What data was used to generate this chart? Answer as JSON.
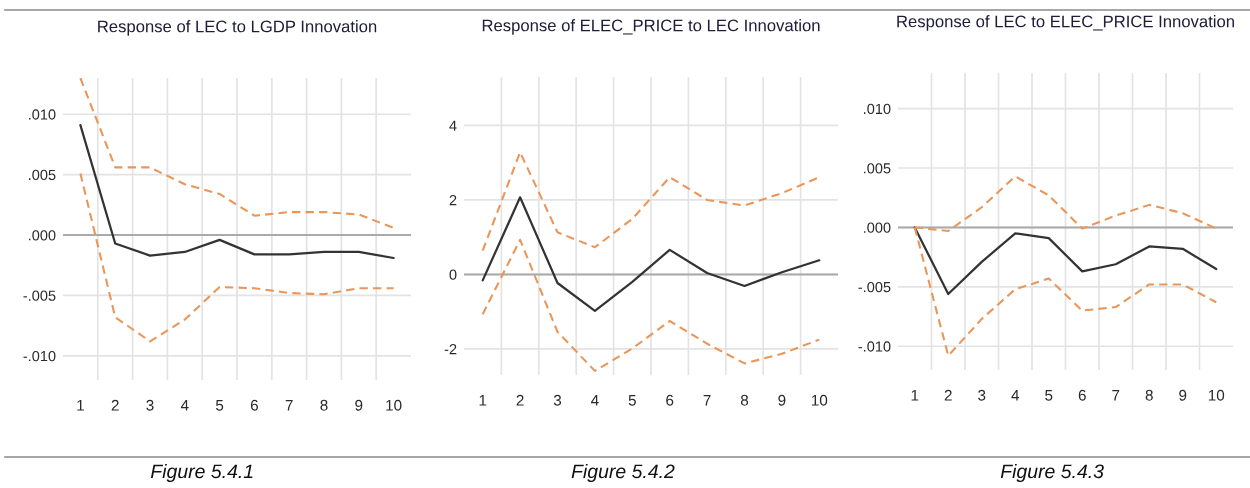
{
  "chart_data": [
    {
      "type": "line",
      "title": "Response of LEC to LGDP Innovation",
      "categories": [
        "1",
        "2",
        "3",
        "4",
        "5",
        "6",
        "7",
        "8",
        "9",
        "10"
      ],
      "series": [
        {
          "color": "#333333",
          "line_style": "solid",
          "values": [
            0.0091,
            -0.0007,
            -0.0017,
            -0.0014,
            -0.0004,
            -0.0016,
            -0.0016,
            -0.0014,
            -0.0014,
            -0.0019
          ]
        },
        {
          "color": "#e9965a",
          "line_style": "dashed",
          "values": [
            0.013,
            0.0056,
            0.0056,
            0.0042,
            0.0034,
            0.0016,
            0.0019,
            0.0019,
            0.0017,
            0.0006
          ]
        },
        {
          "color": "#e9965a",
          "line_style": "dashed",
          "values": [
            0.0051,
            -0.0068,
            -0.0088,
            -0.007,
            -0.0043,
            -0.0044,
            -0.0048,
            -0.0049,
            -0.0044,
            -0.0044
          ]
        }
      ],
      "ylim": [
        -0.012,
        0.013
      ],
      "yticks": [
        {
          "value": 0.01,
          "label": ".010"
        },
        {
          "value": 0.005,
          "label": ".005"
        },
        {
          "value": 0,
          "label": ".000"
        },
        {
          "value": -0.005,
          "label": "-.005"
        },
        {
          "value": -0.01,
          "label": "-.010"
        }
      ],
      "grid": true,
      "ref_lines": [
        {
          "axis": "y",
          "value": 0,
          "color": "#aaaaaa"
        }
      ],
      "annotations": [
        "Figure 5.4.1"
      ]
    },
    {
      "type": "line",
      "title": "Response of ELEC_PRICE to LEC Innovation",
      "categories": [
        "1",
        "2",
        "3",
        "4",
        "5",
        "6",
        "7",
        "8",
        "9",
        "10"
      ],
      "series": [
        {
          "color": "#333333",
          "line_style": "solid",
          "values": [
            -0.16,
            2.07,
            -0.23,
            -0.98,
            -0.2,
            0.66,
            0.04,
            -0.31,
            0.06,
            0.38
          ]
        },
        {
          "color": "#e9965a",
          "line_style": "dashed",
          "values": [
            0.64,
            3.28,
            1.13,
            0.73,
            1.49,
            2.61,
            2.0,
            1.85,
            2.18,
            2.61
          ]
        },
        {
          "color": "#e9965a",
          "line_style": "dashed",
          "values": [
            -1.07,
            0.93,
            -1.54,
            -2.59,
            -1.99,
            -1.25,
            -1.86,
            -2.39,
            -2.13,
            -1.75
          ]
        }
      ],
      "ylim": [
        -2.7,
        5.3
      ],
      "yticks": [
        4,
        2,
        0,
        -2
      ],
      "grid": true,
      "ref_lines": [
        {
          "axis": "y",
          "value": 0,
          "color": "#aaaaaa"
        }
      ],
      "annotations": [
        "Figure 5.4.2"
      ]
    },
    {
      "type": "line",
      "title": "Response of LEC to ELEC_PRICE Innovation",
      "categories": [
        "1",
        "2",
        "3",
        "4",
        "5",
        "6",
        "7",
        "8",
        "9",
        "10"
      ],
      "series": [
        {
          "color": "#333333",
          "line_style": "solid",
          "values": [
            0,
            -0.0056,
            -0.0029,
            -0.0005,
            -0.0009,
            -0.0037,
            -0.0031,
            -0.0016,
            -0.0018,
            -0.0035
          ]
        },
        {
          "color": "#e9965a",
          "line_style": "dashed",
          "values": [
            0,
            -0.0003,
            0.0017,
            0.0043,
            0.0027,
            -0.0001,
            0.001,
            0.0019,
            0.0012,
            -0.0001
          ]
        },
        {
          "color": "#e9965a",
          "line_style": "dashed",
          "values": [
            0,
            -0.0108,
            -0.0077,
            -0.0052,
            -0.0043,
            -0.007,
            -0.0067,
            -0.0048,
            -0.0048,
            -0.0063
          ]
        }
      ],
      "ylim": [
        -0.012,
        0.013
      ],
      "yticks": [
        {
          "value": 0.01,
          "label": ".010"
        },
        {
          "value": 0.005,
          "label": ".005"
        },
        {
          "value": 0,
          "label": ".000"
        },
        {
          "value": -0.005,
          "label": "-.005"
        },
        {
          "value": -0.01,
          "label": "-.010"
        }
      ],
      "grid": true,
      "ref_lines": [
        {
          "axis": "y",
          "value": 0,
          "color": "#aaaaaa"
        }
      ],
      "annotations": [
        "Figure 5.4.3"
      ]
    }
  ]
}
